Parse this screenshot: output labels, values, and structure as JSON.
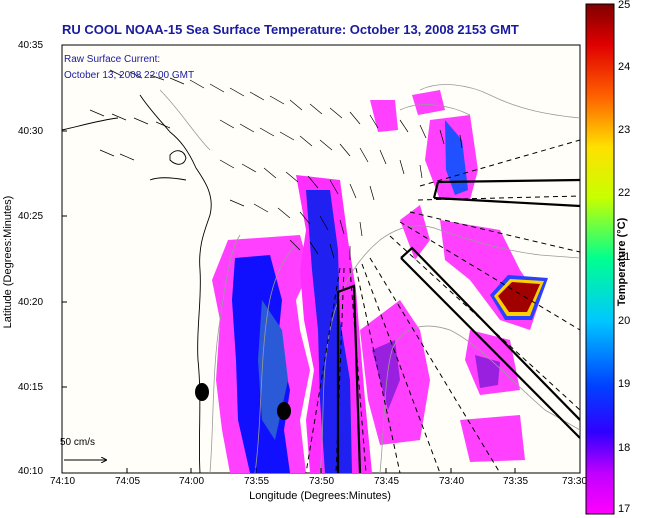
{
  "title": "RU COOL  NOAA-15  Sea Surface Temperature:  October 13, 2008 2153 GMT",
  "annotation": {
    "line1": "Raw Surface Current:",
    "line2": "October 13, 2008 22:00 GMT"
  },
  "scale": {
    "label": "50 cm/s"
  },
  "axes": {
    "xlabel": "Longitude (Degrees:Minutes)",
    "ylabel": "Latitude (Degrees:Minutes)",
    "xticks": [
      "74:10",
      "74:05",
      "74:00",
      "73:55",
      "73:50",
      "73:45",
      "73:40",
      "73:35",
      "73:30"
    ],
    "yticks": [
      "40:35",
      "40:30",
      "40:25",
      "40:20",
      "40:15",
      "40:10"
    ]
  },
  "colorbar": {
    "title": "Temperature (°C)",
    "ticks": [
      "25",
      "24",
      "23",
      "22",
      "21",
      "20",
      "19",
      "18",
      "17"
    ],
    "range": [
      17,
      25
    ],
    "colors": [
      "#ff00ff",
      "#9a1ee0",
      "#0000ff",
      "#00c8ff",
      "#00ff80",
      "#c8ff00",
      "#ffff00",
      "#ff8000",
      "#ff0000",
      "#900000"
    ]
  },
  "colors": {
    "title": "#1a1aa0",
    "coast": "#000000",
    "contour": "#9a9a9a",
    "sst_warm": "#a00000"
  }
}
